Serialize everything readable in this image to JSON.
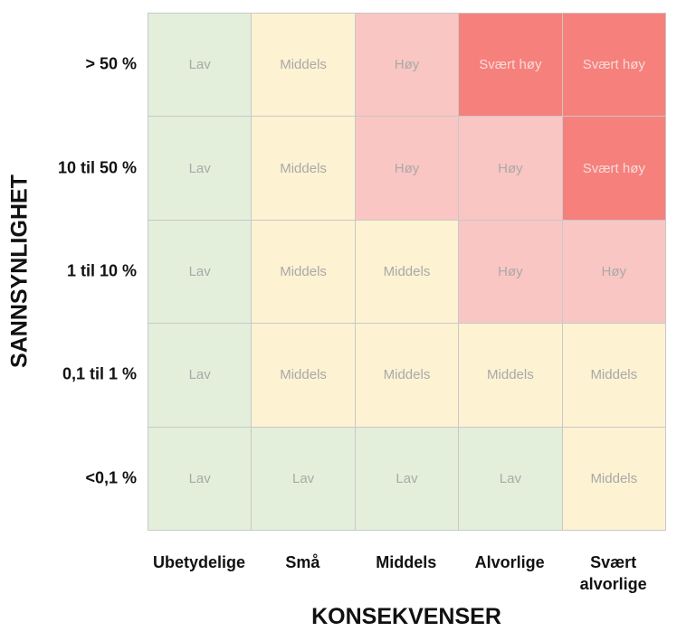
{
  "axes": {
    "x_title": "KONSEKVENSER",
    "y_title": "SANNSYNLIGHET"
  },
  "columns": [
    "Ubetydelige",
    "Små",
    "Middels",
    "Alvorlige",
    "Svært alvorlige"
  ],
  "rows": [
    {
      "label": "> 50 %",
      "cells": [
        "Lav",
        "Middels",
        "Høy",
        "Svært høy",
        "Svært høy"
      ]
    },
    {
      "label": "10 til 50 %",
      "cells": [
        "Lav",
        "Middels",
        "Høy",
        "Høy",
        "Svært høy"
      ]
    },
    {
      "label": "1 til 10 %",
      "cells": [
        "Lav",
        "Middels",
        "Middels",
        "Høy",
        "Høy"
      ]
    },
    {
      "label": "0,1 til 1 %",
      "cells": [
        "Lav",
        "Middels",
        "Middels",
        "Middels",
        "Middels"
      ]
    },
    {
      "label": "<0,1 %",
      "cells": [
        "Lav",
        "Lav",
        "Lav",
        "Lav",
        "Middels"
      ]
    }
  ],
  "level_colors": {
    "Lav": "#e3efda",
    "Middels": "#fdf2d2",
    "Høy": "#f9c6c3",
    "Svært høy": "#f6807c"
  }
}
